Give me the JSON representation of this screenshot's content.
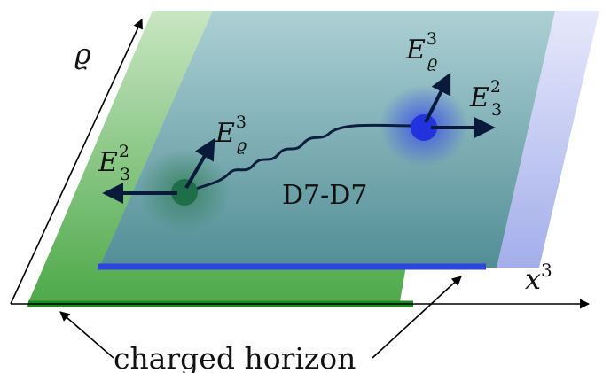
{
  "axes": {
    "vertical_label": "ϱ",
    "horizontal_label": "x",
    "horizontal_superscript": "3"
  },
  "string_label": "D7-D7",
  "caption": "charged horizon",
  "left_endpoint": {
    "field_up": {
      "base": "E",
      "sub": "ϱ",
      "sup": "3"
    },
    "field_side": {
      "base": "E",
      "sub": "3",
      "sup": "2"
    }
  },
  "right_endpoint": {
    "field_up": {
      "base": "E",
      "sub": "ϱ",
      "sup": "3"
    },
    "field_side": {
      "base": "E",
      "sub": "3",
      "sup": "2"
    }
  },
  "colors": {
    "green_brane": "#63b05a",
    "blue_brane": "#b6bdf0",
    "teal_overlap": "#4f8f9a",
    "green_horizon": "#1a8a1a",
    "blue_horizon": "#2d44e0",
    "left_endpoint": "#1f6e4a",
    "right_endpoint": "#2233dd",
    "arrows": "#0a1a3a"
  }
}
